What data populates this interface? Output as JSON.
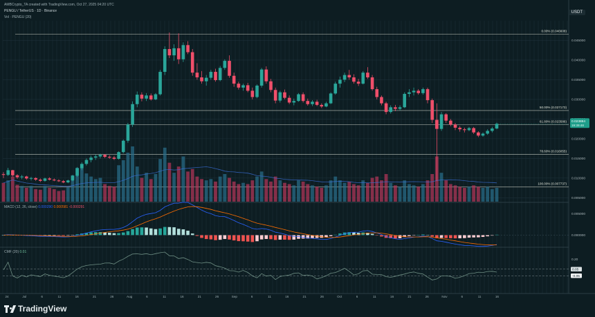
{
  "header": {
    "credit": "AMBCrypto_TA created with TradingView.com, Oct 27, 2025 04:20 UTC",
    "symbol_line": "PENGU / TetherUS · 1D · Binance",
    "volume_line": "Vol · PENGU (20)"
  },
  "quote_currency": "USDT",
  "price_badge": {
    "value": "0.023884",
    "countdown": "19:39:48",
    "color": "#1e9e8a"
  },
  "brand": {
    "name": "TradingView"
  },
  "colors": {
    "up": "#2aa69a",
    "down": "#ef4f6a",
    "grid": "#1c3038",
    "fib": "#d7dccf",
    "macd": "#2962ff",
    "signal": "#ff6d00",
    "cmf": "#6f8f84",
    "background": "#0d1d22"
  },
  "chart_data": [
    {
      "type": "candlestick",
      "title": "",
      "price_axis": {
        "min": 0.004,
        "max": 0.05,
        "ticks": [
          "0.045000",
          "0.040000",
          "0.035000",
          "0.030000",
          "0.025000",
          "0.020000",
          "0.015000",
          "0.010000",
          "0.005000"
        ]
      },
      "x_ticks": [
        "24",
        "Jul",
        "6",
        "11",
        "16",
        "21",
        "26",
        "Aug",
        "6",
        "11",
        "16",
        "21",
        "26",
        "Sep",
        "6",
        "11",
        "16",
        "21",
        "26",
        "Oct",
        "6",
        "11",
        "16",
        "21",
        "26",
        "Nov",
        "6",
        "11",
        "16"
      ],
      "fib_levels": [
        {
          "label": "0.00% (0.046608)",
          "price": 0.046608
        },
        {
          "label": "50.00% (0.027173)",
          "price": 0.027173
        },
        {
          "label": "61.80% (0.023586)",
          "price": 0.023586
        },
        {
          "label": "78.60% (0.016055)",
          "price": 0.016055
        },
        {
          "label": "100.00% (0.007737)",
          "price": 0.007737
        }
      ],
      "candles": [
        [
          0.011,
          0.0115,
          0.01,
          0.0108
        ],
        [
          0.0108,
          0.0126,
          0.0105,
          0.012
        ],
        [
          0.012,
          0.0121,
          0.0104,
          0.0107
        ],
        [
          0.0107,
          0.011,
          0.0098,
          0.0102
        ],
        [
          0.0102,
          0.0108,
          0.0097,
          0.0104
        ],
        [
          0.0104,
          0.0106,
          0.0096,
          0.0099
        ],
        [
          0.0099,
          0.0103,
          0.0094,
          0.01
        ],
        [
          0.01,
          0.0102,
          0.0093,
          0.0096
        ],
        [
          0.0096,
          0.0099,
          0.009,
          0.0093
        ],
        [
          0.0093,
          0.0101,
          0.0091,
          0.0099
        ],
        [
          0.0099,
          0.0102,
          0.0094,
          0.0096
        ],
        [
          0.0096,
          0.0099,
          0.0092,
          0.0094
        ],
        [
          0.0094,
          0.0097,
          0.009,
          0.0092
        ],
        [
          0.0092,
          0.0095,
          0.0087,
          0.0089
        ],
        [
          0.0089,
          0.0096,
          0.0087,
          0.0094
        ],
        [
          0.0094,
          0.0108,
          0.0092,
          0.0106
        ],
        [
          0.0106,
          0.0128,
          0.0103,
          0.0125
        ],
        [
          0.0125,
          0.014,
          0.012,
          0.0136
        ],
        [
          0.0136,
          0.015,
          0.0132,
          0.0146
        ],
        [
          0.0146,
          0.0157,
          0.014,
          0.0152
        ],
        [
          0.0152,
          0.016,
          0.0146,
          0.0155
        ],
        [
          0.0155,
          0.0162,
          0.015,
          0.0159
        ],
        [
          0.0159,
          0.0161,
          0.0151,
          0.0154
        ],
        [
          0.0154,
          0.0158,
          0.0149,
          0.0152
        ],
        [
          0.0152,
          0.0156,
          0.0146,
          0.0149
        ],
        [
          0.0149,
          0.0168,
          0.0147,
          0.0166
        ],
        [
          0.0166,
          0.0198,
          0.0163,
          0.0195
        ],
        [
          0.0195,
          0.024,
          0.019,
          0.0236
        ],
        [
          0.0236,
          0.0295,
          0.023,
          0.0288
        ],
        [
          0.0288,
          0.032,
          0.028,
          0.0312
        ],
        [
          0.0312,
          0.0318,
          0.0295,
          0.0302
        ],
        [
          0.0302,
          0.0316,
          0.0296,
          0.031
        ],
        [
          0.031,
          0.0315,
          0.0297,
          0.03
        ],
        [
          0.03,
          0.0316,
          0.0298,
          0.0313
        ],
        [
          0.0313,
          0.0375,
          0.031,
          0.037
        ],
        [
          0.037,
          0.0435,
          0.0362,
          0.0428
        ],
        [
          0.0428,
          0.047,
          0.0405,
          0.0412
        ],
        [
          0.0412,
          0.044,
          0.0398,
          0.043
        ],
        [
          0.043,
          0.0468,
          0.039,
          0.0402
        ],
        [
          0.0402,
          0.0445,
          0.0395,
          0.0438
        ],
        [
          0.0438,
          0.0448,
          0.0415,
          0.042
        ],
        [
          0.042,
          0.0428,
          0.036,
          0.0368
        ],
        [
          0.0368,
          0.0392,
          0.035,
          0.0356
        ],
        [
          0.0356,
          0.0372,
          0.034,
          0.0346
        ],
        [
          0.0346,
          0.0362,
          0.0335,
          0.0355
        ],
        [
          0.0355,
          0.0375,
          0.035,
          0.037
        ],
        [
          0.037,
          0.0378,
          0.0345,
          0.0349
        ],
        [
          0.0349,
          0.0385,
          0.0346,
          0.038
        ],
        [
          0.038,
          0.0402,
          0.0375,
          0.0398
        ],
        [
          0.0398,
          0.0412,
          0.0355,
          0.036
        ],
        [
          0.036,
          0.0368,
          0.0332,
          0.034
        ],
        [
          0.034,
          0.0345,
          0.0325,
          0.033
        ],
        [
          0.033,
          0.034,
          0.0322,
          0.0336
        ],
        [
          0.0336,
          0.0342,
          0.0318,
          0.0322
        ],
        [
          0.0322,
          0.033,
          0.03,
          0.0306
        ],
        [
          0.0306,
          0.0338,
          0.0303,
          0.0335
        ],
        [
          0.0335,
          0.038,
          0.033,
          0.0376
        ],
        [
          0.0376,
          0.0384,
          0.034,
          0.0346
        ],
        [
          0.0346,
          0.0352,
          0.0318,
          0.0324
        ],
        [
          0.0324,
          0.033,
          0.029,
          0.0297
        ],
        [
          0.0297,
          0.0322,
          0.0292,
          0.0318
        ],
        [
          0.0318,
          0.0325,
          0.03,
          0.0304
        ],
        [
          0.0304,
          0.031,
          0.0288,
          0.0292
        ],
        [
          0.0292,
          0.0302,
          0.0285,
          0.0296
        ],
        [
          0.0296,
          0.0316,
          0.0294,
          0.0313
        ],
        [
          0.0313,
          0.0318,
          0.0292,
          0.0296
        ],
        [
          0.0296,
          0.0302,
          0.0284,
          0.0288
        ],
        [
          0.0288,
          0.0298,
          0.0283,
          0.0294
        ],
        [
          0.0294,
          0.0299,
          0.0283,
          0.0286
        ],
        [
          0.0286,
          0.029,
          0.0278,
          0.0282
        ],
        [
          0.0282,
          0.0294,
          0.028,
          0.029
        ],
        [
          0.029,
          0.0318,
          0.0288,
          0.0315
        ],
        [
          0.0315,
          0.0345,
          0.0312,
          0.034
        ],
        [
          0.034,
          0.0358,
          0.033,
          0.035
        ],
        [
          0.035,
          0.0368,
          0.0344,
          0.0362
        ],
        [
          0.0362,
          0.0375,
          0.035,
          0.0356
        ],
        [
          0.0356,
          0.0364,
          0.034,
          0.0345
        ],
        [
          0.0345,
          0.0352,
          0.0334,
          0.034
        ],
        [
          0.034,
          0.0372,
          0.0338,
          0.0368
        ],
        [
          0.0368,
          0.0382,
          0.0352,
          0.0356
        ],
        [
          0.0356,
          0.0362,
          0.0322,
          0.0326
        ],
        [
          0.0326,
          0.0332,
          0.03,
          0.0306
        ],
        [
          0.0306,
          0.031,
          0.0285,
          0.029
        ],
        [
          0.029,
          0.0294,
          0.0262,
          0.0268
        ],
        [
          0.0268,
          0.0285,
          0.0264,
          0.028
        ],
        [
          0.028,
          0.0286,
          0.027,
          0.0276
        ],
        [
          0.0276,
          0.0285,
          0.0272,
          0.028
        ],
        [
          0.028,
          0.0318,
          0.0278,
          0.0314
        ],
        [
          0.0314,
          0.0326,
          0.0306,
          0.0318
        ],
        [
          0.0318,
          0.033,
          0.031,
          0.0322
        ],
        [
          0.0322,
          0.0326,
          0.0312,
          0.0316
        ],
        [
          0.0316,
          0.033,
          0.0312,
          0.0326
        ],
        [
          0.0326,
          0.033,
          0.029,
          0.0298
        ],
        [
          0.0298,
          0.0302,
          0.024,
          0.0248
        ],
        [
          0.0248,
          0.029,
          0.0092,
          0.0225
        ],
        [
          0.0225,
          0.0268,
          0.022,
          0.0262
        ],
        [
          0.0262,
          0.0265,
          0.024,
          0.0246
        ],
        [
          0.0246,
          0.025,
          0.0232,
          0.0236
        ],
        [
          0.0236,
          0.024,
          0.0222,
          0.0228
        ],
        [
          0.0228,
          0.0232,
          0.0218,
          0.0224
        ],
        [
          0.0224,
          0.0228,
          0.0216,
          0.0222
        ],
        [
          0.0222,
          0.023,
          0.0219,
          0.0227
        ],
        [
          0.0227,
          0.023,
          0.0212,
          0.0216
        ],
        [
          0.0216,
          0.0219,
          0.0204,
          0.0208
        ],
        [
          0.0208,
          0.0216,
          0.0205,
          0.0213
        ],
        [
          0.0213,
          0.0224,
          0.021,
          0.022
        ],
        [
          0.022,
          0.023,
          0.0216,
          0.0226
        ],
        [
          0.0226,
          0.0241,
          0.0224,
          0.0238
        ]
      ],
      "volume": [
        30,
        34,
        40,
        27,
        25,
        22,
        25,
        20,
        19,
        25,
        22,
        20,
        17,
        18,
        23,
        42,
        54,
        60,
        45,
        40,
        36,
        38,
        28,
        25,
        24,
        58,
        66,
        78,
        88,
        56,
        38,
        46,
        36,
        44,
        68,
        86,
        62,
        46,
        56,
        72,
        48,
        52,
        40,
        36,
        34,
        36,
        32,
        40,
        44,
        38,
        32,
        28,
        30,
        28,
        34,
        40,
        48,
        36,
        32,
        40,
        34,
        30,
        28,
        26,
        34,
        32,
        28,
        26,
        24,
        22,
        26,
        34,
        40,
        34,
        30,
        32,
        28,
        26,
        34,
        30,
        38,
        40,
        34,
        44,
        30,
        26,
        24,
        34,
        28,
        26,
        24,
        28,
        34,
        44,
        72,
        46,
        34,
        28,
        26,
        24,
        22,
        24,
        26,
        24,
        22,
        24,
        20,
        22
      ]
    },
    {
      "type": "line",
      "title": "",
      "indicator": "MACD (12, 26, close)",
      "readout": [
        "0.000290",
        "0.000581",
        "-0.000291"
      ],
      "y_ticks": [
        "0.005000",
        "0.000000"
      ],
      "y_range": [
        -0.0025,
        0.0065
      ]
    },
    {
      "type": "line",
      "title": "",
      "indicator": "CMF (20)",
      "readout": [
        "0.01"
      ],
      "y_ticks": [
        "0.20",
        "0.05",
        "-0.05"
      ],
      "y_range": [
        -0.3,
        0.3
      ]
    }
  ]
}
